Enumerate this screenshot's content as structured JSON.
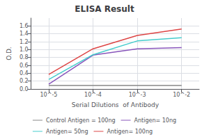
{
  "chart_data": {
    "type": "line",
    "title": "ELISA Result",
    "xlabel": "Serial Dilutions  of Antibody",
    "ylabel": "O.D.",
    "x": [
      0.01,
      0.001,
      0.0001,
      1e-05
    ],
    "series": [
      {
        "name": "Control Antigen = 100ng",
        "color": "#888888",
        "values": [
          0.09,
          0.09,
          0.09,
          0.09
        ]
      },
      {
        "name": "Antigen= 10ng",
        "color": "#8855bb",
        "values": [
          1.05,
          1.02,
          0.86,
          0.12
        ]
      },
      {
        "name": "Antigen= 50ng",
        "color": "#44cccc",
        "values": [
          1.3,
          1.22,
          0.87,
          0.24
        ]
      },
      {
        "name": "Antigen= 100ng",
        "color": "#dd4444",
        "values": [
          1.52,
          1.36,
          1.02,
          0.37
        ]
      }
    ],
    "log": "x",
    "xlim": [
      4e-06,
      0.025
    ],
    "xticks": [
      {
        "value": 0.01,
        "label": "10^-2"
      },
      {
        "value": 0.001,
        "label": "10^-3"
      },
      {
        "value": 0.0001,
        "label": "10^-4"
      },
      {
        "value": 1e-05,
        "label": "10^-5"
      }
    ],
    "ylim": [
      0,
      1.8
    ],
    "yticks": [
      {
        "value": 0,
        "label": "0.0"
      },
      0.2,
      0.4,
      0.6,
      0.8,
      {
        "value": 1.0,
        "label": "1.0"
      },
      1.2,
      1.4,
      1.6
    ],
    "grid": true,
    "legend": "bottom"
  }
}
